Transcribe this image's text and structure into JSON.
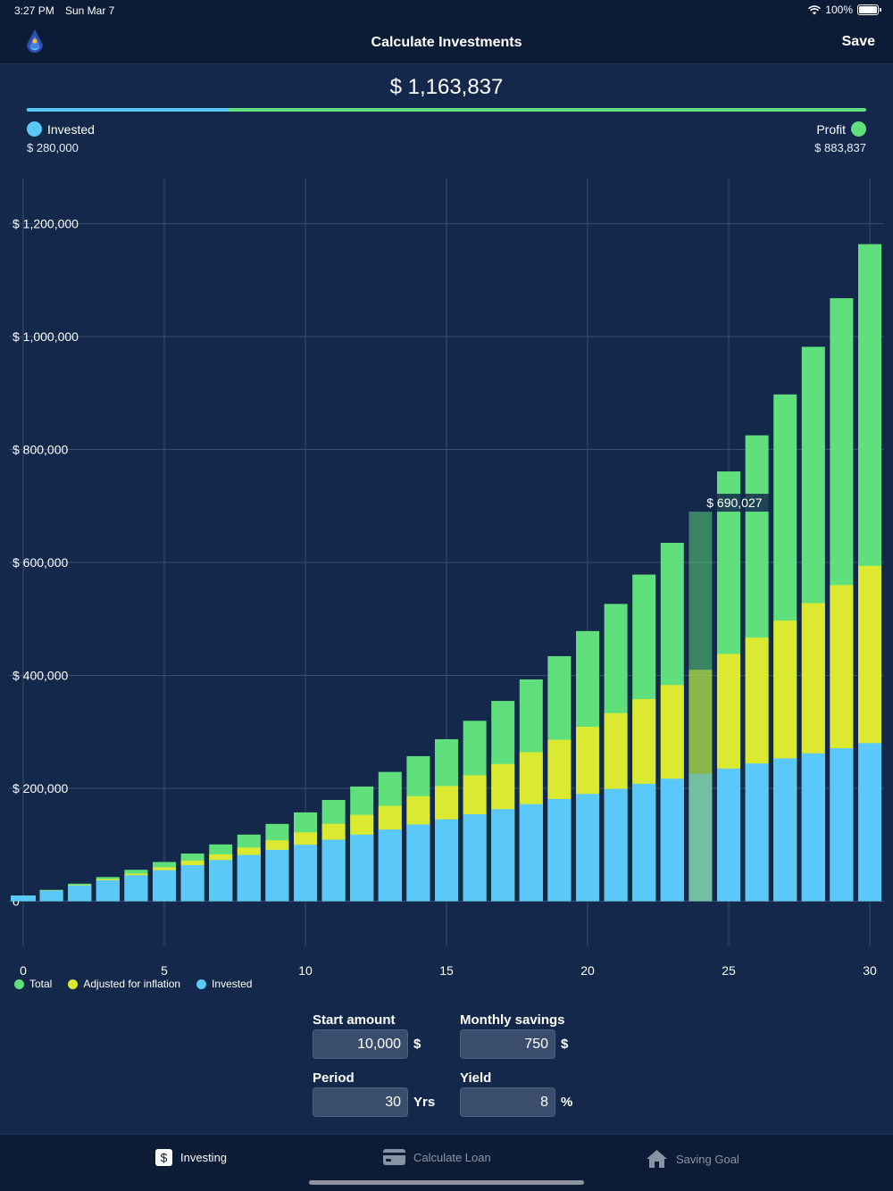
{
  "status_bar": {
    "time": "3:27 PM",
    "date": "Sun Mar 7",
    "battery": "100%"
  },
  "nav": {
    "title": "Calculate Investments",
    "save_label": "Save"
  },
  "summary": {
    "total": "$ 1,163,837",
    "invested_label": "Invested",
    "invested_value": "$ 280,000",
    "profit_label": "Profit",
    "profit_value": "$ 883,837",
    "invested_fraction": 0.2406
  },
  "colors": {
    "total": "#5fe07c",
    "inflation": "#dbea30",
    "invested": "#5bc8fa",
    "background": "#13284a"
  },
  "chart_data": {
    "type": "bar",
    "x": [
      0,
      1,
      2,
      3,
      4,
      5,
      6,
      7,
      8,
      9,
      10,
      11,
      12,
      13,
      14,
      15,
      16,
      17,
      18,
      19,
      20,
      21,
      22,
      23,
      24,
      25,
      26,
      27,
      28,
      29,
      30
    ],
    "x_ticks": [
      0,
      5,
      10,
      15,
      20,
      25,
      30
    ],
    "y_ticks": [
      0,
      200000,
      400000,
      600000,
      800000,
      1000000,
      1200000
    ],
    "y_tick_labels": [
      "0",
      "$ 200,000",
      "$ 400,000",
      "$ 600,000",
      "$ 800,000",
      "$ 1,000,000",
      "$ 1,200,000"
    ],
    "ylim": [
      -80000,
      1280000
    ],
    "xlim": [
      0,
      30
    ],
    "grid": true,
    "legend_position": "bottom-left",
    "highlighted_index": 24,
    "highlight_label": "$ 690,027",
    "series": [
      {
        "name": "Total",
        "values": [
          10000,
          20117,
          31054,
          42877,
          55659,
          69478,
          84416,
          100565,
          118024,
          136898,
          157302,
          179360,
          203206,
          228986,
          256856,
          286984,
          319554,
          354765,
          392829,
          433978,
          478464,
          526556,
          578547,
          634752,
          690027,
          761224,
          825222,
          897630,
          982000,
          1068000,
          1163837
        ]
      },
      {
        "name": "Adjusted for inflation",
        "values": [
          10000,
          19500,
          29000,
          39000,
          49000,
          60000,
          72000,
          83000,
          95000,
          108000,
          122000,
          137000,
          153000,
          169000,
          186000,
          204000,
          223000,
          243000,
          264000,
          286000,
          309000,
          333000,
          358000,
          383000,
          410000,
          438000,
          467000,
          497000,
          528000,
          560000,
          594000
        ]
      },
      {
        "name": "Invested",
        "values": [
          10000,
          19000,
          28000,
          37000,
          46000,
          55000,
          64000,
          73000,
          82000,
          91000,
          100000,
          109000,
          118000,
          127000,
          136000,
          145000,
          154000,
          163000,
          172000,
          181000,
          190000,
          199000,
          208000,
          217000,
          226000,
          235000,
          244000,
          253000,
          262000,
          271000,
          280000
        ]
      }
    ]
  },
  "inputs": {
    "start_amount": {
      "label": "Start amount",
      "value": "10,000",
      "unit": "$"
    },
    "monthly_savings": {
      "label": "Monthly savings",
      "value": "750",
      "unit": "$"
    },
    "period": {
      "label": "Period",
      "value": "30",
      "unit": "Yrs"
    },
    "yield": {
      "label": "Yield",
      "value": "8",
      "unit": "%"
    }
  },
  "tabs": [
    {
      "label": "Investing",
      "icon": "dollar-icon",
      "active": true
    },
    {
      "label": "Calculate Loan",
      "icon": "credit-card-icon",
      "active": false
    },
    {
      "label": "Saving Goal",
      "icon": "house-icon",
      "active": false
    }
  ]
}
